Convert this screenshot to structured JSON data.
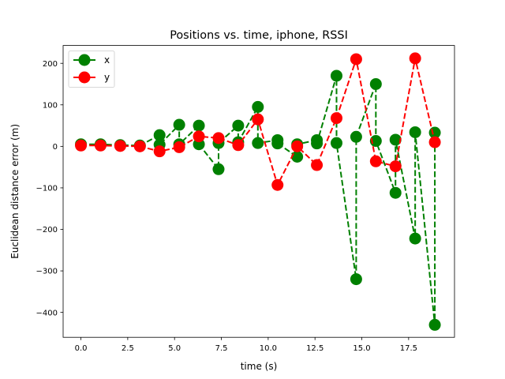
{
  "chart_data": {
    "type": "line",
    "title": "Positions vs. time, iphone, RSSI",
    "xlabel": "time (s)",
    "ylabel": "Euclidean distance error (m)",
    "xlim": [
      -0.95,
      19.95
    ],
    "ylim": [
      -460,
      243
    ],
    "xticks": [
      0.0,
      2.5,
      5.0,
      7.5,
      10.0,
      12.5,
      15.0,
      17.5
    ],
    "xtick_labels": [
      "0.0",
      "2.5",
      "5.0",
      "7.5",
      "10.0",
      "12.5",
      "15.0",
      "17.5"
    ],
    "yticks": [
      -400,
      -300,
      -200,
      -100,
      0,
      100,
      200
    ],
    "ytick_labels": [
      "−400",
      "−300",
      "−200",
      "−100",
      "0",
      "100",
      "200"
    ],
    "legend_position": "top-left",
    "series": [
      {
        "name": "x",
        "color": "#008000",
        "x": [
          0.0,
          1.05,
          2.1,
          3.15,
          4.2,
          4.2,
          5.25,
          5.25,
          6.3,
          6.3,
          7.35,
          7.35,
          8.4,
          8.4,
          9.45,
          9.45,
          10.5,
          10.5,
          11.55,
          11.55,
          12.6,
          12.6,
          13.65,
          13.65,
          14.7,
          14.7,
          15.75,
          15.75,
          16.8,
          16.8,
          17.85,
          17.85,
          18.9,
          18.9
        ],
        "y": [
          5,
          5,
          3,
          2,
          27,
          4,
          52,
          5,
          50,
          5,
          -55,
          8,
          50,
          10,
          95,
          8,
          15,
          7,
          -25,
          5,
          15,
          7,
          170,
          8,
          -320,
          23,
          150,
          13,
          -112,
          16,
          -222,
          34,
          -430,
          33
        ]
      },
      {
        "name": "y",
        "color": "#ff0000",
        "x": [
          0.0,
          1.05,
          2.1,
          3.15,
          4.2,
          5.25,
          6.3,
          7.35,
          8.4,
          9.45,
          10.5,
          11.55,
          12.6,
          13.65,
          14.7,
          15.75,
          16.8,
          17.85,
          18.9
        ],
        "y": [
          2,
          2,
          1,
          0,
          -12,
          -2,
          24,
          20,
          3,
          65,
          -93,
          0,
          -45,
          68,
          210,
          -36,
          -48,
          212,
          10
        ]
      }
    ]
  }
}
